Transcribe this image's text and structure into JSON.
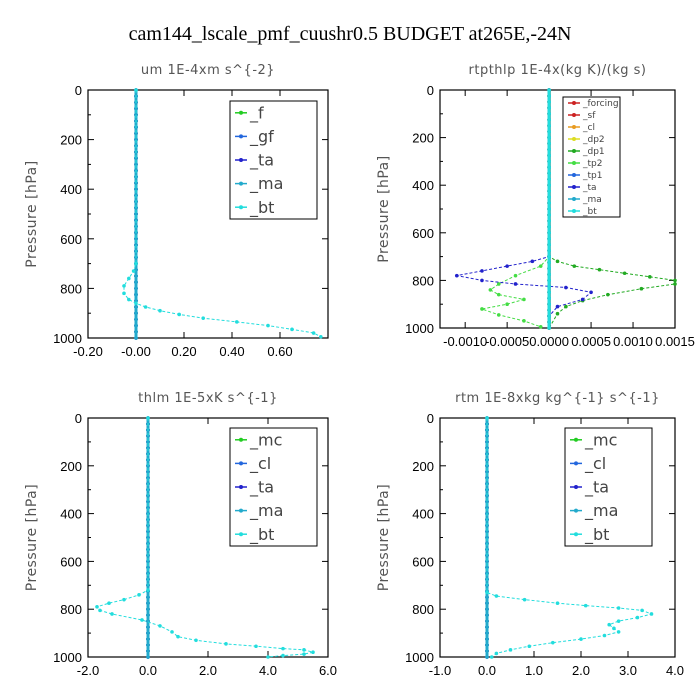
{
  "title": "cam144_lscale_pmf_cuushr0.5  BUDGET at265E,-24N",
  "chart_data": [
    {
      "type": "line",
      "title": "um   1E-4xm s^{-2}",
      "ylabel": "Pressure [hPa]",
      "xlim": [
        -0.2,
        0.8
      ],
      "ylim": [
        1000,
        0
      ],
      "xticks": [
        "-0.20",
        "-0.00",
        "0.20",
        "0.40",
        "0.60"
      ],
      "xtick_values": [
        -0.2,
        0.0,
        0.2,
        0.4,
        0.6
      ],
      "yticks": [
        "0",
        "200",
        "400",
        "600",
        "800",
        "1000"
      ],
      "ytick_values": [
        0,
        200,
        400,
        600,
        800,
        1000
      ],
      "legend_position": "top-right",
      "series": [
        {
          "name": "_f",
          "color": "#22cc22",
          "values": "zero"
        },
        {
          "name": "_gf",
          "color": "#2266dd",
          "values": "zero"
        },
        {
          "name": "_ta",
          "color": "#2222cc",
          "values": "zero"
        },
        {
          "name": "_ma",
          "color": "#22aacc",
          "values": "zero"
        },
        {
          "name": "_bt",
          "color": "#22dddd",
          "x": [
            0,
            0,
            -0.01,
            -0.03,
            -0.05,
            -0.05,
            -0.03,
            0,
            0.04,
            0.1,
            0.18,
            0.28,
            0.42,
            0.55,
            0.65,
            0.74,
            0.77
          ],
          "y": [
            0,
            700,
            730,
            760,
            790,
            820,
            845,
            860,
            875,
            890,
            905,
            920,
            935,
            950,
            965,
            980,
            995
          ]
        }
      ]
    },
    {
      "type": "line",
      "title": "rtpthlp   1E-4x(kg K)/(kg s)",
      "ylabel": "Pressure [hPa]",
      "xlim": [
        -0.0013,
        0.0015
      ],
      "ylim": [
        1000,
        0
      ],
      "xticks": [
        "-0.0010",
        "-0.0005",
        "0.0000",
        "0.0005",
        "0.0010",
        "0.0015"
      ],
      "xtick_values": [
        -0.001,
        -0.0005,
        0.0,
        0.0005,
        0.001,
        0.0015
      ],
      "yticks": [
        "0",
        "200",
        "400",
        "600",
        "800",
        "1000"
      ],
      "ytick_values": [
        0,
        200,
        400,
        600,
        800,
        1000
      ],
      "legend_position": "top-right",
      "series": [
        {
          "name": "_forcing",
          "color": "#cc2222",
          "values": "zero"
        },
        {
          "name": "_sf",
          "color": "#cc2222",
          "values": "zero"
        },
        {
          "name": "_cl",
          "color": "#e89c22",
          "values": "zero"
        },
        {
          "name": "_dp2",
          "color": "#dddd22",
          "values": "zero"
        },
        {
          "name": "_dp1",
          "color": "#22aa22",
          "x": [
            0,
            0,
            0.0001,
            0.0003,
            0.0006,
            0.0009,
            0.0012,
            0.0015,
            0.0015,
            0.0011,
            0.0007,
            0.0004,
            0.0002,
            0.0001,
            0
          ],
          "y": [
            0,
            700,
            720,
            740,
            755,
            770,
            785,
            800,
            815,
            835,
            860,
            885,
            910,
            940,
            1000
          ]
        },
        {
          "name": "_tp2",
          "color": "#44dd44",
          "x": [
            0,
            0,
            -0.0001,
            -0.0004,
            -0.0006,
            -0.0007,
            -0.0006,
            -0.0003,
            -0.0005,
            -0.0008,
            -0.0006,
            -0.0003,
            -0.0001
          ],
          "y": [
            0,
            700,
            740,
            780,
            815,
            840,
            860,
            880,
            900,
            920,
            945,
            970,
            995
          ]
        },
        {
          "name": "_tp1",
          "color": "#2266dd",
          "values": "zero"
        },
        {
          "name": "_ta",
          "color": "#2222cc",
          "x": [
            0,
            0,
            -0.0002,
            -0.0005,
            -0.0008,
            -0.0011,
            -0.0008,
            -0.0004,
            0.0002,
            0.0005,
            0.0004,
            0.0001,
            0
          ],
          "y": [
            0,
            700,
            720,
            740,
            760,
            780,
            800,
            815,
            830,
            850,
            880,
            910,
            950
          ]
        },
        {
          "name": "_ma",
          "color": "#22aacc",
          "values": "zero"
        },
        {
          "name": "_bt",
          "color": "#22dddd",
          "values": "zero"
        }
      ]
    },
    {
      "type": "line",
      "title": "thlm   1E-5xK s^{-1}",
      "ylabel": "Pressure [hPa]",
      "xlim": [
        -2.0,
        6.0
      ],
      "ylim": [
        1000,
        0
      ],
      "xticks": [
        "-2.0",
        "0.0",
        "2.0",
        "4.0",
        "6.0"
      ],
      "xtick_values": [
        -2.0,
        0.0,
        2.0,
        4.0,
        6.0
      ],
      "yticks": [
        "0",
        "200",
        "400",
        "600",
        "800",
        "1000"
      ],
      "ytick_values": [
        0,
        200,
        400,
        600,
        800,
        1000
      ],
      "legend_position": "top-right",
      "series": [
        {
          "name": "_mc",
          "color": "#22cc22",
          "values": "zero"
        },
        {
          "name": "_cl",
          "color": "#2266dd",
          "values": "zero"
        },
        {
          "name": "_ta",
          "color": "#2222cc",
          "values": "zero"
        },
        {
          "name": "_ma",
          "color": "#22aacc",
          "values": "zero"
        },
        {
          "name": "_bt",
          "color": "#22dddd",
          "x": [
            0,
            0,
            -0.3,
            -0.8,
            -1.3,
            -1.7,
            -1.6,
            -1.2,
            -0.2,
            0.4,
            0.8,
            1.0,
            1.6,
            2.6,
            3.6,
            4.5,
            5.2,
            5.5,
            5.2,
            4.5,
            4.0
          ],
          "y": [
            0,
            720,
            740,
            760,
            775,
            790,
            805,
            820,
            845,
            870,
            895,
            915,
            930,
            945,
            955,
            965,
            970,
            980,
            988,
            994,
            1000
          ]
        }
      ]
    },
    {
      "type": "line",
      "title": "rtm   1E-8xkg kg^{-1} s^{-1}",
      "ylabel": "Pressure [hPa]",
      "xlim": [
        -1.0,
        4.0
      ],
      "ylim": [
        1000,
        0
      ],
      "xticks": [
        "-1.0",
        "0.0",
        "1.0",
        "2.0",
        "3.0",
        "4.0"
      ],
      "xtick_values": [
        -1.0,
        0.0,
        1.0,
        2.0,
        3.0,
        4.0
      ],
      "yticks": [
        "0",
        "200",
        "400",
        "600",
        "800",
        "1000"
      ],
      "ytick_values": [
        0,
        200,
        400,
        600,
        800,
        1000
      ],
      "legend_position": "top-right",
      "series": [
        {
          "name": "_mc",
          "color": "#22cc22",
          "values": "zero"
        },
        {
          "name": "_cl",
          "color": "#2266dd",
          "values": "zero"
        },
        {
          "name": "_ta",
          "color": "#2222cc",
          "values": "zero"
        },
        {
          "name": "_ma",
          "color": "#22aacc",
          "values": "zero"
        },
        {
          "name": "_bt",
          "color": "#22dddd",
          "x": [
            0,
            0,
            0.2,
            0.8,
            1.5,
            2.1,
            2.8,
            3.3,
            3.5,
            3.2,
            2.8,
            2.6,
            2.7,
            2.8,
            2.5,
            2.0,
            1.4,
            0.9,
            0.5,
            0.2,
            0.1
          ],
          "y": [
            0,
            730,
            745,
            760,
            775,
            785,
            795,
            805,
            820,
            835,
            850,
            865,
            880,
            895,
            910,
            925,
            940,
            955,
            970,
            985,
            1000
          ]
        }
      ]
    }
  ]
}
